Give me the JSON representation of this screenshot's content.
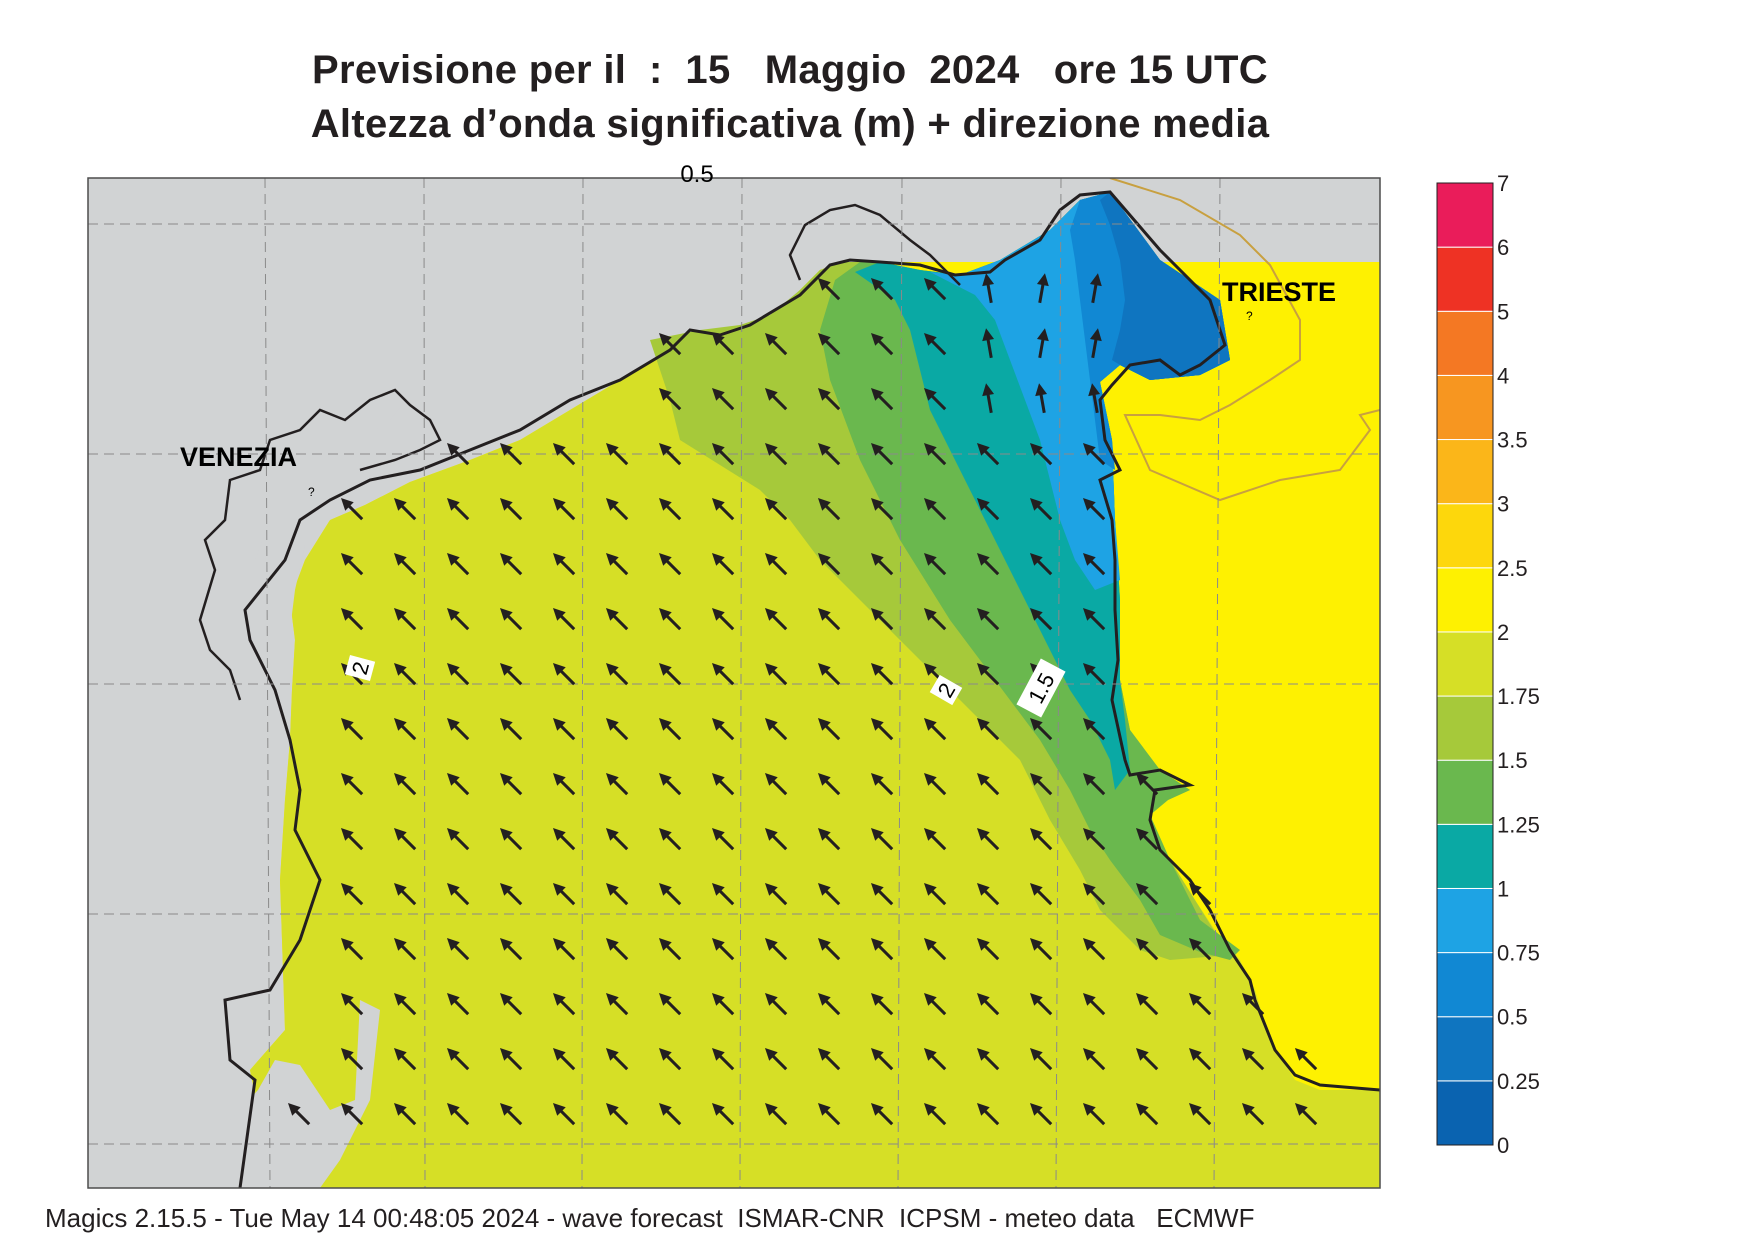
{
  "title": {
    "line1": "Previsione per il  :  15   Maggio  2024   ore 15 UTC",
    "line2": "Altezza d’onda significativa (m) + direzione media"
  },
  "map_labels": {
    "venezia": "VENEZIA",
    "trieste": "TRIESTE",
    "contour_top": "0.5",
    "contour_2_west": "2",
    "contour_2_east": "2",
    "contour_1_5": "1.5",
    "marker": "?"
  },
  "colors": {
    "land": "#d1d3d4",
    "coast": "#231f20",
    "border": "#c8a040",
    "arrow": "#231f20"
  },
  "colorbar": {
    "labels": [
      "0",
      "0.25",
      "0.5",
      "0.75",
      "1",
      "1.25",
      "1.5",
      "1.75",
      "2",
      "2.5",
      "3",
      "3.5",
      "4",
      "5",
      "6",
      "7"
    ],
    "colors": [
      "#0a63b0",
      "#0f75c0",
      "#1188d3",
      "#1ea3e4",
      "#0aa9a4",
      "#6ab84e",
      "#a6c93a",
      "#d6df26",
      "#fef101",
      "#fdd70c",
      "#fbb619",
      "#f79620",
      "#f47823",
      "#ee3224",
      "#ea1c5a"
    ]
  },
  "wave_field": {
    "mean_direction": "NW",
    "max_height_band": "2 - 2.5",
    "min_height_band": "0 - 0.25"
  },
  "footer": "Magics 2.15.5 - Tue May 14 00:48:05 2024 - wave forecast  ISMAR-CNR  ICPSM - meteo data   ECMWF"
}
